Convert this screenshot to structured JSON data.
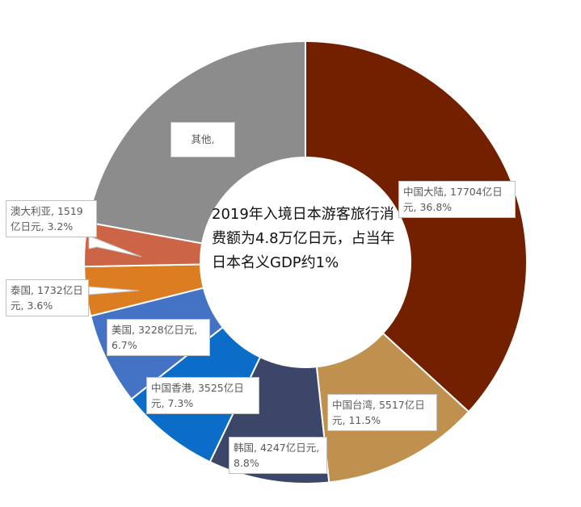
{
  "chart_data": {
    "type": "pie",
    "donut": true,
    "center_text": "2019年入境日本游客旅行消费额为4.8万亿日元，占当年日本名义GDP约1%",
    "unit": "亿日元",
    "slices": [
      {
        "name": "中国大陆",
        "value": 17704,
        "percent": 36.8,
        "color": "#722000",
        "label": "中国大陆, 17704亿日元, 36.8%"
      },
      {
        "name": "中国台湾",
        "value": 5517,
        "percent": 11.5,
        "color": "#C0914E",
        "label": "中国台湾, 5517亿日元, 11.5%"
      },
      {
        "name": "韩国",
        "value": 4247,
        "percent": 8.8,
        "color": "#3B4668",
        "label": "韩国, 4247亿日元, 8.8%"
      },
      {
        "name": "中国香港",
        "value": 3525,
        "percent": 7.3,
        "color": "#0B6DC7",
        "label": "中国香港, 3525亿日元, 7.3%"
      },
      {
        "name": "美国",
        "value": 3228,
        "percent": 6.7,
        "color": "#4472C4",
        "label": "美国, 3228亿日元, 6.7%"
      },
      {
        "name": "泰国",
        "value": 1732,
        "percent": 3.6,
        "color": "#DD7D22",
        "label": "泰国, 1732亿日元, 3.6%"
      },
      {
        "name": "澳大利亚",
        "value": 1519,
        "percent": 3.2,
        "color": "#CC6545",
        "label": "澳大利亚, 1519亿日元, 3.2%"
      },
      {
        "name": "其他",
        "value": null,
        "percent": 22.1,
        "color": "#8C8C8C",
        "label": "其他,"
      }
    ]
  }
}
